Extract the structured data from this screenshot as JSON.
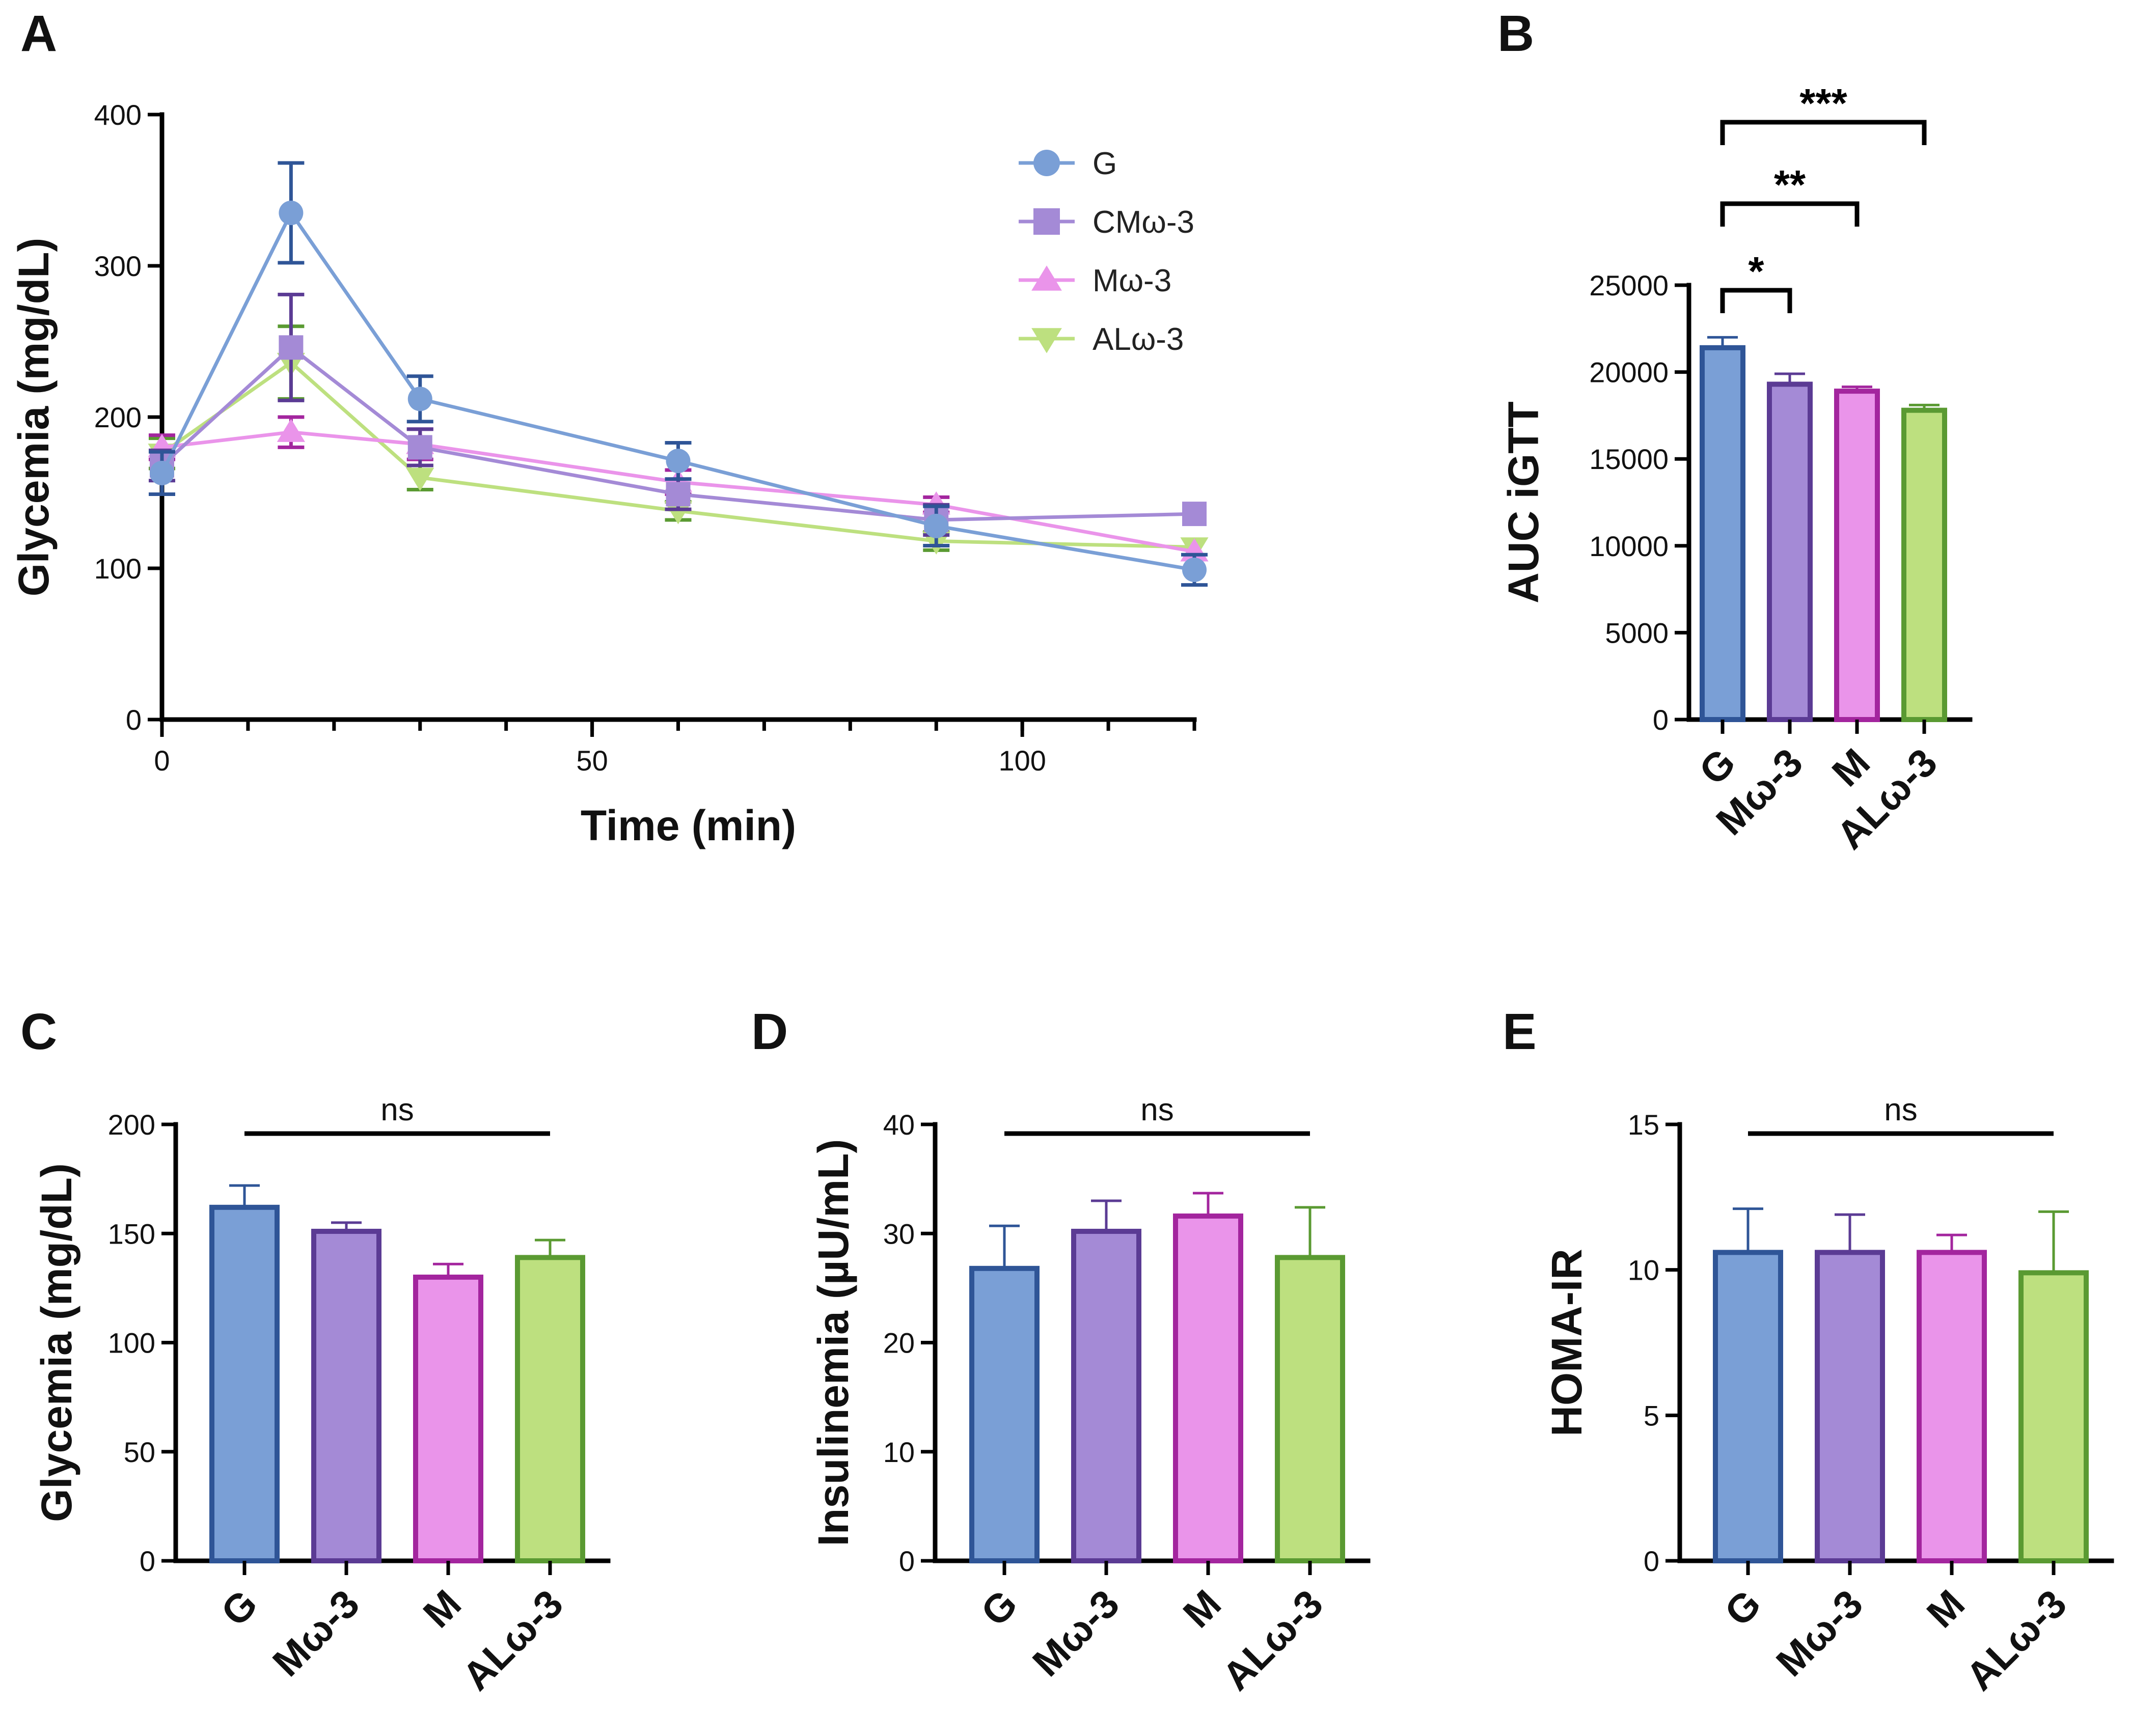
{
  "groups": {
    "G": {
      "fill": "#7a9fd6",
      "stroke": "#2f5597"
    },
    "CMw3": {
      "fill": "#a48ad6",
      "stroke": "#5b3b94"
    },
    "Mw3": {
      "fill": "#ea94ea",
      "stroke": "#a3259e"
    },
    "ALw3": {
      "fill": "#bde07f",
      "stroke": "#5a9a32"
    }
  },
  "panels": {
    "A": {
      "letter": "A"
    },
    "B": {
      "letter": "B"
    },
    "C": {
      "letter": "C"
    },
    "D": {
      "letter": "D"
    },
    "E": {
      "letter": "E"
    }
  },
  "chart_data": [
    {
      "id": "A",
      "type": "line",
      "title": "",
      "xlabel": "Time (min)",
      "ylabel": "Glycemia (mg/dL)",
      "xlim": [
        0,
        120
      ],
      "ylim": [
        0,
        400
      ],
      "xticks": [
        0,
        50,
        100
      ],
      "xtick_labels": [
        "0",
        "50",
        "100"
      ],
      "yticks": [
        0,
        100,
        200,
        300,
        400
      ],
      "ytick_labels": [
        "0",
        "100",
        "200",
        "300",
        "400"
      ],
      "x": [
        0,
        15,
        30,
        60,
        90,
        120
      ],
      "legend_position": "top-right",
      "series": [
        {
          "name": "G",
          "group": "G",
          "marker": "circle",
          "values": [
            163,
            335,
            212,
            171,
            128,
            99
          ],
          "errors": [
            14,
            33,
            15,
            12,
            13,
            10
          ]
        },
        {
          "name": "CMω-3",
          "group": "CMw3",
          "marker": "square",
          "values": [
            168,
            246,
            180,
            149,
            132,
            136
          ],
          "errors": [
            10,
            35,
            12,
            10,
            10,
            0
          ]
        },
        {
          "name": "Mω-3",
          "group": "Mw3",
          "marker": "triangle-up",
          "values": [
            180,
            190,
            182,
            157,
            142,
            111
          ],
          "errors": [
            8,
            10,
            10,
            8,
            5,
            0
          ]
        },
        {
          "name": "ALω-3",
          "group": "ALw3",
          "marker": "triangle-down",
          "values": [
            176,
            236,
            160,
            138,
            118,
            114
          ],
          "errors": [
            10,
            24,
            8,
            6,
            6,
            0
          ]
        }
      ]
    },
    {
      "id": "B",
      "type": "bar",
      "ylabel": "AUC iGTT",
      "ylim": [
        0,
        25000
      ],
      "yticks": [
        0,
        5000,
        10000,
        15000,
        20000,
        25000
      ],
      "ytick_labels": [
        "0",
        "5000",
        "10000",
        "15000",
        "20000",
        "25000"
      ],
      "categories": [
        "G",
        "Mω-3",
        "M",
        "ALω-3"
      ],
      "groups": [
        "G",
        "CMw3",
        "Mw3",
        "ALw3"
      ],
      "values": [
        21400,
        19300,
        18900,
        17800
      ],
      "errors": [
        600,
        600,
        250,
        300
      ],
      "significance": [
        {
          "from": 0,
          "to": 1,
          "label": "*"
        },
        {
          "from": 0,
          "to": 2,
          "label": "**"
        },
        {
          "from": 0,
          "to": 3,
          "label": "***"
        }
      ]
    },
    {
      "id": "C",
      "type": "bar",
      "ylabel": "Glycemia (mg/dL)",
      "ylim": [
        0,
        200
      ],
      "yticks": [
        0,
        50,
        100,
        150,
        200
      ],
      "ytick_labels": [
        "0",
        "50",
        "100",
        "150",
        "200"
      ],
      "categories": [
        "G",
        "Mω-3",
        "M",
        "ALω-3"
      ],
      "groups": [
        "G",
        "CMw3",
        "Mw3",
        "ALw3"
      ],
      "values": [
        162,
        151,
        130,
        139
      ],
      "errors": [
        10,
        4,
        6,
        8
      ],
      "ns_label": "ns"
    },
    {
      "id": "D",
      "type": "bar",
      "ylabel": "Insulinemia (µU/mL)",
      "ylim": [
        0,
        40
      ],
      "yticks": [
        0,
        10,
        20,
        30,
        40
      ],
      "ytick_labels": [
        "0",
        "10",
        "20",
        "30",
        "40"
      ],
      "categories": [
        "G",
        "Mω-3",
        "M",
        "ALω-3"
      ],
      "groups": [
        "G",
        "CMw3",
        "Mw3",
        "ALw3"
      ],
      "values": [
        26.8,
        30.2,
        31.6,
        27.8
      ],
      "errors": [
        3.9,
        2.8,
        2.1,
        4.6
      ],
      "ns_label": "ns"
    },
    {
      "id": "E",
      "type": "bar",
      "ylabel": "HOMA-IR",
      "ylim": [
        0,
        15
      ],
      "yticks": [
        0,
        5,
        10,
        15
      ],
      "ytick_labels": [
        "0",
        "5",
        "10",
        "15"
      ],
      "categories": [
        "G",
        "Mω-3",
        "M",
        "ALω-3"
      ],
      "groups": [
        "G",
        "CMw3",
        "Mw3",
        "ALw3"
      ],
      "values": [
        10.6,
        10.6,
        10.6,
        9.9
      ],
      "errors": [
        1.5,
        1.3,
        0.6,
        2.1
      ],
      "ns_label": "ns"
    }
  ]
}
